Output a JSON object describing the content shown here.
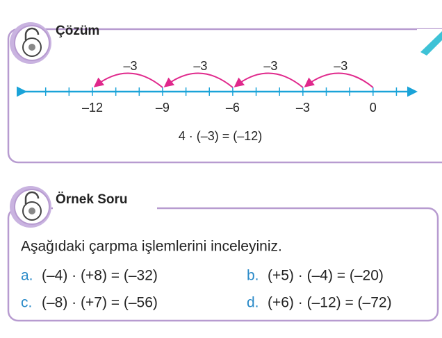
{
  "solution": {
    "title": "Çözüm",
    "number_line": {
      "labels": [
        "–12",
        "–9",
        "–6",
        "–3",
        "0"
      ],
      "jumps": [
        "–3",
        "–3",
        "–3",
        "–3"
      ]
    },
    "equation": "4 · (–3) = (–12)"
  },
  "example": {
    "title": "Örnek Soru",
    "prompt": "Aşağıdaki çarpma işlemlerini inceleyiniz.",
    "items": [
      {
        "letter": "a.",
        "expr": "(–4) · (+8) = (–32)"
      },
      {
        "letter": "b.",
        "expr": "(+5) · (–4) = (–20)"
      },
      {
        "letter": "c.",
        "expr": "(–8) · (+7) = (–56)"
      },
      {
        "letter": "d.",
        "expr": "(+6) · (–12) = (–72)"
      }
    ]
  }
}
